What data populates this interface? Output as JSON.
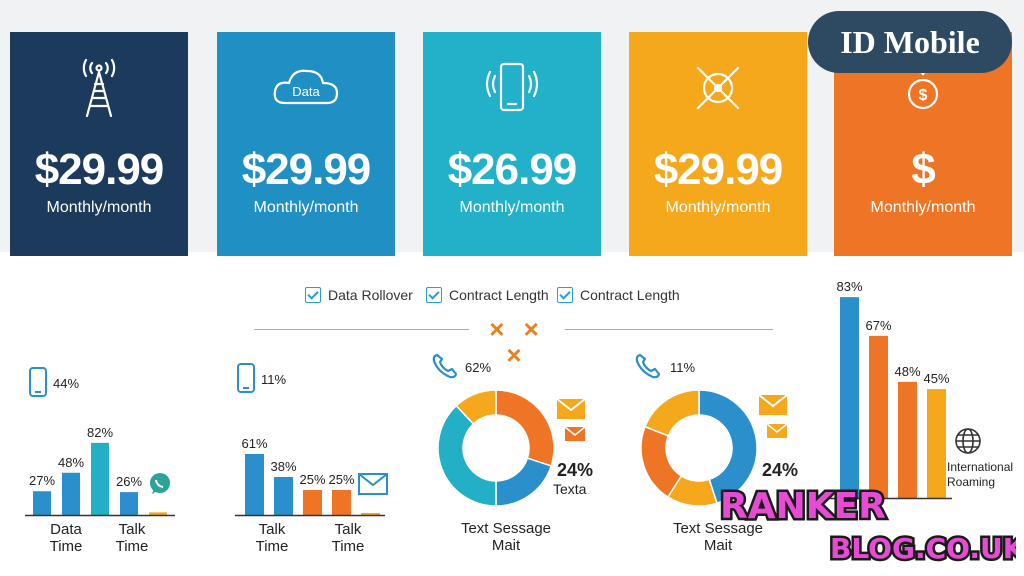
{
  "brand": "ID Mobile",
  "cards": [
    {
      "price": "$29.99",
      "period": "Monthly/month",
      "color": "#1b3a5c",
      "icon": "cell-tower-icon"
    },
    {
      "price": "$29.99",
      "period": "Monthly/month",
      "color": "#1f8fc4",
      "icon": "data-cloud-icon",
      "icon_text": "Data"
    },
    {
      "price": "$26.99",
      "period": "Monthly/month",
      "color": "#22b1c9",
      "icon": "smartphone-icon"
    },
    {
      "price": "$29.99",
      "period": "Monthly/month",
      "color": "#f6a81c",
      "icon": "crossed-target-icon"
    },
    {
      "price": "$",
      "period": "Monthly/month",
      "color": "#ee7526",
      "icon": "dollar-coin-icon"
    }
  ],
  "features": [
    "Data Rollover",
    "Contract Length",
    "Contract Length"
  ],
  "divider_marks": "× × ×",
  "colors": {
    "blue": "#2b8fcb",
    "teal": "#23b0c6",
    "orange": "#ee7526",
    "yellow": "#f6a81c",
    "navy": "#1b3a5c",
    "green": "#2aa39a"
  },
  "chart_data": [
    {
      "type": "bar",
      "header_value": "44%",
      "categories": [
        "Data Time",
        "Talk Time"
      ],
      "bars": [
        {
          "value": 27,
          "label": "27%",
          "color": "#2b8fcb"
        },
        {
          "value": 48,
          "label": "48%",
          "color": "#2b8fcb"
        },
        {
          "value": 82,
          "label": "82%",
          "color": "#23b0c6"
        },
        {
          "value": 26,
          "label": "26%",
          "color": "#2b8fcb"
        },
        {
          "value": 3,
          "label": "",
          "color": "#f6a81c"
        }
      ]
    },
    {
      "type": "bar",
      "header_value": "11%",
      "categories": [
        "Talk Time",
        "Talk Time"
      ],
      "bars": [
        {
          "value": 61,
          "label": "61%",
          "color": "#2b8fcb"
        },
        {
          "value": 38,
          "label": "38%",
          "color": "#2b8fcb"
        },
        {
          "value": 25,
          "label": "25%",
          "color": "#ee7526"
        },
        {
          "value": 25,
          "label": "25%",
          "color": "#ee7526"
        },
        {
          "value": 2,
          "label": "",
          "color": "#f6a81c"
        }
      ]
    },
    {
      "type": "pie",
      "header_value": "62%",
      "side_value": "24%",
      "side_label": "Texta",
      "caption": "Text Sessage Mait",
      "slices": [
        {
          "value": 30,
          "color": "#ee7526"
        },
        {
          "value": 20,
          "color": "#2b8fcb"
        },
        {
          "value": 38,
          "color": "#23b0c6"
        },
        {
          "value": 12,
          "color": "#f6a81c"
        }
      ]
    },
    {
      "type": "pie",
      "header_value": "11%",
      "side_value": "24%",
      "caption": "Text Sessage Mait",
      "slices": [
        {
          "value": 45,
          "color": "#2b8fcb"
        },
        {
          "value": 14,
          "color": "#f6a81c"
        },
        {
          "value": 22,
          "color": "#ee7526"
        },
        {
          "value": 19,
          "color": "#f6a81c"
        }
      ]
    },
    {
      "type": "bar",
      "side_label": "International Roaming",
      "bars": [
        {
          "value": 83,
          "label": "83%",
          "color": "#2b8fcb"
        },
        {
          "value": 67,
          "label": "67%",
          "color": "#ee7526"
        },
        {
          "value": 48,
          "label": "48%",
          "color": "#ee7526"
        },
        {
          "value": 45,
          "label": "45%",
          "color": "#f6a81c"
        }
      ]
    }
  ],
  "watermark": {
    "line1": "RANKER",
    "line2": "BLOG.CO.UK"
  }
}
